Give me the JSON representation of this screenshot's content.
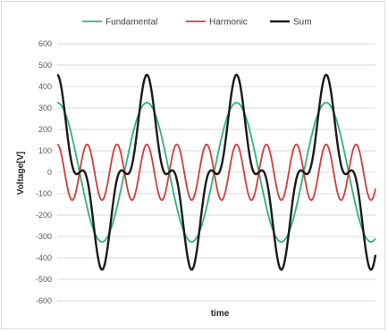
{
  "chart_data": {
    "type": "line",
    "title": "",
    "xlabel": "time",
    "ylabel": "Voltage[V]",
    "ylim": [
      -600,
      600
    ],
    "yticks": [
      600,
      500,
      400,
      300,
      200,
      100,
      0,
      -100,
      -200,
      -300,
      -400,
      -500,
      -600
    ],
    "x_range": [
      0,
      3.55
    ],
    "grid": "horizontal",
    "legend": "top",
    "series": [
      {
        "name": "Fundamental",
        "color": "#2db37a",
        "amplitude": 325,
        "harmonic_order": 1,
        "phase_deg": 90
      },
      {
        "name": "Harmonic",
        "color": "#d23c3c",
        "amplitude": 130,
        "harmonic_order": 3,
        "phase_deg": 90
      },
      {
        "name": "Sum",
        "color": "#1a1a1a",
        "formula": "Fundamental + Harmonic"
      }
    ],
    "sum_peak": 455
  }
}
